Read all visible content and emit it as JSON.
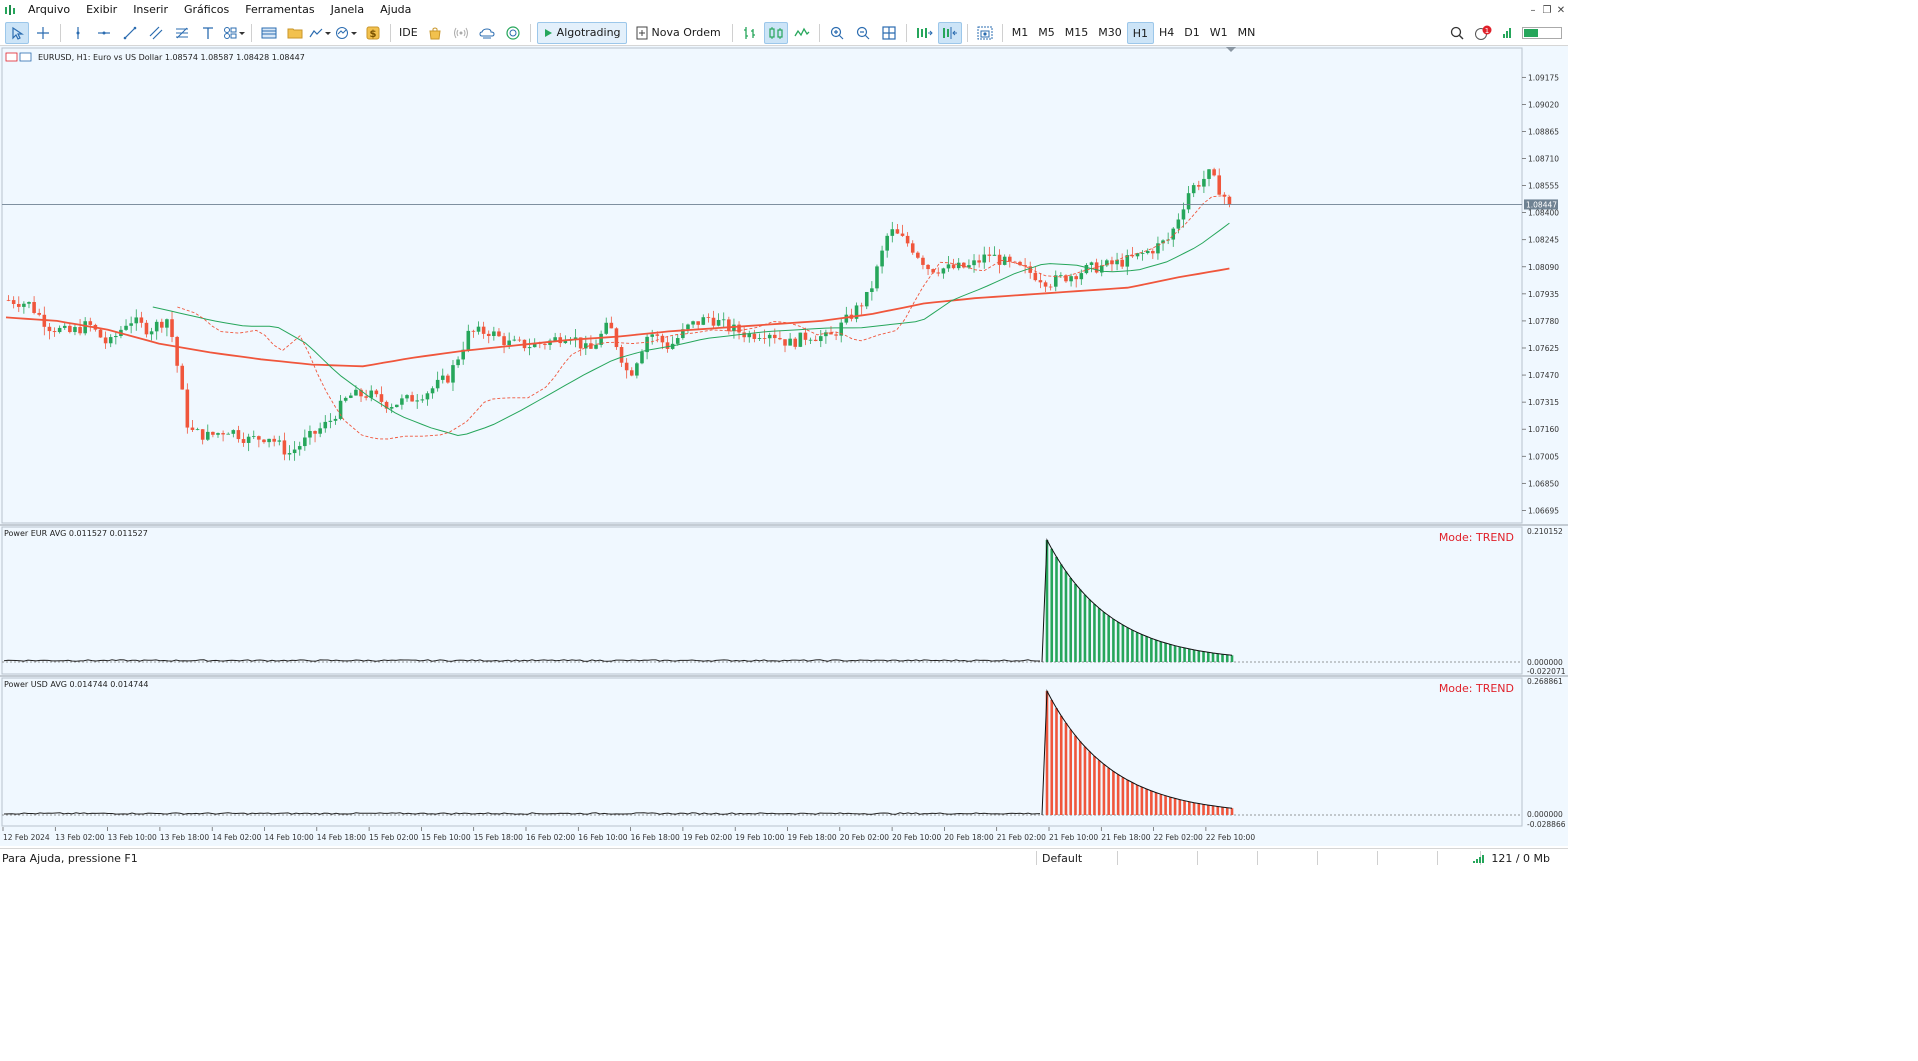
{
  "menu": {
    "items": [
      "Arquivo",
      "Exibir",
      "Inserir",
      "Gráficos",
      "Ferramentas",
      "Janela",
      "Ajuda"
    ]
  },
  "toolbar": {
    "ide_label": "IDE",
    "algotrading_label": "Algotrading",
    "new_order_label": "Nova Ordem",
    "timeframes": [
      "M1",
      "M5",
      "M15",
      "M30",
      "H1",
      "H4",
      "D1",
      "W1",
      "MN"
    ],
    "active_timeframe": "H1",
    "notification_count": "1"
  },
  "chart": {
    "header": "EURUSD, H1:  Euro vs US Dollar  1.08574 1.08587 1.08428 1.08447",
    "current_price_label": "1.08447",
    "current_price": 1.08447,
    "colors": {
      "background": "#f0f8ff",
      "bull": "#26a65b",
      "bear": "#f0563c",
      "grid": "#cfd8e0"
    }
  },
  "indicators": {
    "eur": {
      "header": "Power EUR AVG 0.011527 0.011527",
      "mode_label": "Mode: TREND",
      "bar_color": "#26a65b",
      "axis_max_label": "0.210152",
      "axis_zero_label": "0.000000",
      "axis_min_label": "-0.022071",
      "peak": 0.210152,
      "last": 0.011527
    },
    "usd": {
      "header": "Power USD AVG 0.014744 0.014744",
      "mode_label": "Mode: TREND",
      "bar_color": "#f0563c",
      "axis_max_label": "0.268861",
      "axis_zero_label": "0.000000",
      "axis_min_label": "-0.028866",
      "peak": 0.268861,
      "last": 0.014744
    },
    "mode_color": "#e0202a"
  },
  "chart_data": {
    "type": "candlestick",
    "symbol": "EURUSD",
    "timeframe": "H1",
    "y_axis_ticks": [
      "1.09175",
      "1.09020",
      "1.08865",
      "1.08710",
      "1.08555",
      "1.08400",
      "1.08245",
      "1.08090",
      "1.07935",
      "1.07780",
      "1.07625",
      "1.07470",
      "1.07315",
      "1.07160",
      "1.07005",
      "1.06850",
      "1.06695"
    ],
    "x_axis_labels": [
      "12 Feb 2024",
      "13 Feb 02:00",
      "13 Feb 10:00",
      "13 Feb 18:00",
      "14 Feb 02:00",
      "14 Feb 10:00",
      "14 Feb 18:00",
      "15 Feb 02:00",
      "15 Feb 10:00",
      "15 Feb 18:00",
      "16 Feb 02:00",
      "16 Feb 10:00",
      "16 Feb 18:00",
      "19 Feb 02:00",
      "19 Feb 10:00",
      "19 Feb 18:00",
      "20 Feb 02:00",
      "20 Feb 10:00",
      "20 Feb 18:00",
      "21 Feb 02:00",
      "21 Feb 10:00",
      "21 Feb 18:00",
      "22 Feb 02:00",
      "22 Feb 10:00"
    ],
    "ylim": [
      1.0664,
      1.0932
    ],
    "close_path": [
      1.079,
      1.0788,
      1.0775,
      1.0771,
      1.0776,
      1.0764,
      1.0779,
      1.0773,
      1.078,
      1.0715,
      1.0712,
      1.0716,
      1.071,
      1.0712,
      1.0702,
      1.0711,
      1.072,
      1.0735,
      1.0736,
      1.073,
      1.0733,
      1.0738,
      1.0746,
      1.0771,
      1.0772,
      1.0765,
      1.0764,
      1.0766,
      1.0771,
      1.076,
      1.0776,
      1.0746,
      1.0772,
      1.0763,
      1.0775,
      1.078,
      1.0774,
      1.077,
      1.0772,
      1.0765,
      1.077,
      1.0768,
      1.078,
      1.0793,
      1.083,
      1.0822,
      1.0808,
      1.0808,
      1.0809,
      1.0816,
      1.081,
      1.0806,
      1.08,
      1.0804,
      1.0808,
      1.081,
      1.0813,
      1.0818,
      1.0825,
      1.0853,
      1.0862,
      1.0845
    ],
    "ma_fast_path": [
      1.0786,
      1.0782,
      1.0772,
      1.0771,
      1.0773,
      1.076,
      1.077,
      1.0742,
      1.0722,
      1.0712,
      1.071,
      1.0712,
      1.0712,
      1.0713,
      1.072,
      1.0733,
      1.0734,
      1.0734,
      1.0741,
      1.0758,
      1.0764,
      1.0766,
      1.0765,
      1.0766,
      1.077,
      1.0771,
      1.0773,
      1.0772,
      1.0774,
      1.0778,
      1.0776,
      1.077,
      1.0772,
      1.0766,
      1.077,
      1.0773,
      1.0795,
      1.0812,
      1.081,
      1.0806,
      1.0813,
      1.081,
      1.0804,
      1.0803,
      1.0807,
      1.081,
      1.0815,
      1.0818,
      1.0824,
      1.0835,
      1.0849,
      1.085
    ],
    "ma_mid_path": [
      1.0786,
      1.0782,
      1.0778,
      1.0775,
      1.0775,
      1.0765,
      1.0748,
      1.0735,
      1.0724,
      1.0717,
      1.0712,
      1.0718,
      1.0727,
      1.0737,
      1.0747,
      1.0756,
      1.0761,
      1.0764,
      1.0768,
      1.077,
      1.0772,
      1.0773,
      1.0774,
      1.0774,
      1.0776,
      1.0778,
      1.079,
      1.0797,
      1.0805,
      1.0811,
      1.081,
      1.0806,
      1.0807,
      1.0812,
      1.0821,
      1.0834
    ],
    "ma_slow_path": [
      1.078,
      1.0778,
      1.0773,
      1.0765,
      1.076,
      1.0756,
      1.0753,
      1.0752,
      1.0757,
      1.0761,
      1.0764,
      1.0767,
      1.0769,
      1.0772,
      1.0774,
      1.0776,
      1.0778,
      1.0782,
      1.0788,
      1.0791,
      1.0793,
      1.0795,
      1.0797,
      1.0803,
      1.0808
    ]
  }
}
